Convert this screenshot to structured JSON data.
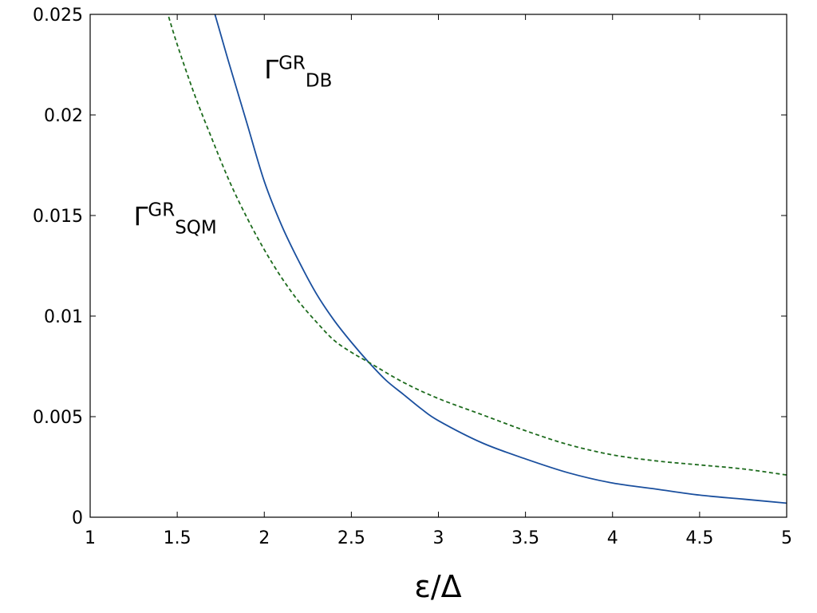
{
  "chart_data": {
    "type": "line",
    "xlabel": "ε/Δ",
    "ylabel": "",
    "xlim": [
      1,
      5
    ],
    "ylim": [
      0,
      0.025
    ],
    "x_ticks": [
      1,
      1.5,
      2,
      2.5,
      3,
      3.5,
      4,
      4.5,
      5
    ],
    "x_tick_labels": [
      "1",
      "1.5",
      "2",
      "2.5",
      "3",
      "3.5",
      "4",
      "4.5",
      "5"
    ],
    "y_ticks": [
      0,
      0.005,
      0.01,
      0.015,
      0.02,
      0.025
    ],
    "y_tick_labels": [
      "0",
      "0.005",
      "0.01",
      "0.015",
      "0.02",
      "0.025"
    ],
    "grid": false,
    "legend": "none",
    "series": [
      {
        "name": "Γ^GR_DB",
        "label_base": "Γ",
        "label_sup": "GR",
        "label_sub": "DB",
        "color": "#1a4f9e",
        "style": "solid",
        "x": [
          1.71,
          1.75,
          1.8,
          1.9,
          2.0,
          2.1,
          2.2,
          2.3,
          2.4,
          2.5,
          2.6,
          2.7,
          2.8,
          2.9,
          3.0,
          3.25,
          3.5,
          3.75,
          4.0,
          4.25,
          4.5,
          4.75,
          5.0
        ],
        "y": [
          0.0252,
          0.024,
          0.0225,
          0.0196,
          0.0167,
          0.0145,
          0.0127,
          0.0111,
          0.0098,
          0.0087,
          0.0077,
          0.0068,
          0.0061,
          0.0054,
          0.0048,
          0.0037,
          0.0029,
          0.0022,
          0.0017,
          0.0014,
          0.0011,
          0.0009,
          0.0007
        ]
      },
      {
        "name": "Γ^GR_SQM",
        "label_base": "Γ",
        "label_sup": "GR",
        "label_sub": "SQM",
        "color": "#1d6b1d",
        "style": "dashed",
        "x": [
          1.44,
          1.5,
          1.6,
          1.7,
          1.8,
          1.9,
          2.0,
          2.1,
          2.2,
          2.3,
          2.4,
          2.5,
          2.6,
          2.8,
          3.0,
          3.25,
          3.5,
          3.75,
          4.0,
          4.25,
          4.5,
          4.75,
          5.0
        ],
        "y": [
          0.0252,
          0.0235,
          0.021,
          0.0188,
          0.0167,
          0.0149,
          0.0133,
          0.0119,
          0.0107,
          0.0097,
          0.0088,
          0.0082,
          0.0077,
          0.0067,
          0.0059,
          0.0051,
          0.0043,
          0.0036,
          0.0031,
          0.0028,
          0.0026,
          0.0024,
          0.0021
        ]
      }
    ],
    "annotations": [
      {
        "series": 0,
        "x": 2.0,
        "y": 0.0218
      },
      {
        "series": 1,
        "x": 1.25,
        "y": 0.0145
      }
    ]
  }
}
